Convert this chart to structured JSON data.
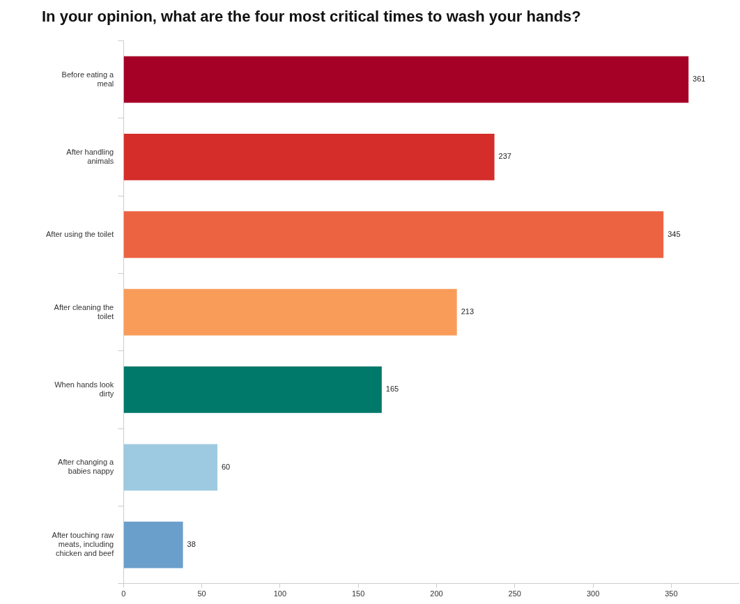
{
  "chart_data": {
    "type": "bar",
    "orientation": "horizontal",
    "title": "In your opinion, what are the four most critical times to wash your hands?",
    "categories": [
      "Before eating a meal",
      "After handling animals",
      "After using the toilet",
      "After cleaning the toilet",
      "When hands look dirty",
      "After changing a babies nappy",
      "After touching raw meats, including chicken and beef"
    ],
    "values": [
      361,
      237,
      345,
      213,
      165,
      60,
      38
    ],
    "colors": [
      "#a50026",
      "#d52d2a",
      "#ec6341",
      "#f99c5a",
      "#00796b",
      "#9ecae1",
      "#6b9fcb"
    ],
    "xlim": [
      0,
      393
    ],
    "xticks": [
      0,
      50,
      100,
      150,
      200,
      250,
      300,
      350
    ],
    "data_labels": true,
    "grid": false,
    "legend": false
  }
}
